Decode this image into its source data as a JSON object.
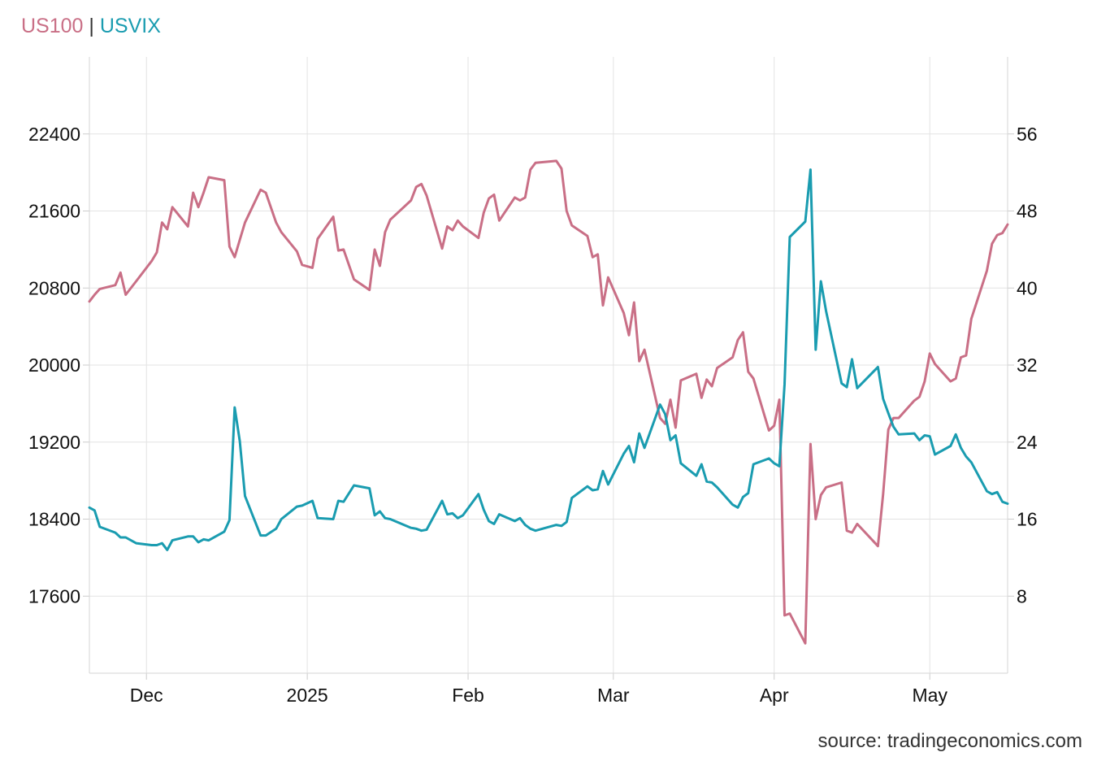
{
  "chart_data": {
    "type": "line",
    "title_parts": [
      "US100",
      "|",
      "USVIX"
    ],
    "source": "source: tradingeconomics.com",
    "colors": {
      "US100": "#c96f86",
      "USVIX": "#1a9cb0"
    },
    "x_range": [
      "2024-11-20",
      "2025-05-16"
    ],
    "x_ticks": [
      {
        "label": "Dec",
        "date": "2024-12-01"
      },
      {
        "label": "2025",
        "date": "2025-01-01"
      },
      {
        "label": "Feb",
        "date": "2025-02-01"
      },
      {
        "label": "Mar",
        "date": "2025-03-01"
      },
      {
        "label": "Apr",
        "date": "2025-04-01"
      },
      {
        "label": "May",
        "date": "2025-05-01"
      }
    ],
    "y_left": {
      "range": [
        16800,
        23200
      ],
      "ticks": [
        "17600",
        "18400",
        "19200",
        "20000",
        "20800",
        "21600",
        "22400"
      ]
    },
    "y_right": {
      "range": [
        0,
        64
      ],
      "ticks": [
        "8",
        "16",
        "24",
        "32",
        "40",
        "48",
        "56"
      ]
    },
    "grid": true,
    "series": [
      {
        "name": "US100",
        "axis": "left",
        "x": [
          "2024-11-20",
          "2024-11-21",
          "2024-11-22",
          "2024-11-25",
          "2024-11-26",
          "2024-11-27",
          "2024-11-29",
          "2024-12-02",
          "2024-12-03",
          "2024-12-04",
          "2024-12-05",
          "2024-12-06",
          "2024-12-09",
          "2024-12-10",
          "2024-12-11",
          "2024-12-12",
          "2024-12-13",
          "2024-12-16",
          "2024-12-17",
          "2024-12-18",
          "2024-12-19",
          "2024-12-20",
          "2024-12-23",
          "2024-12-24",
          "2024-12-26",
          "2024-12-27",
          "2024-12-30",
          "2024-12-31",
          "2025-01-02",
          "2025-01-03",
          "2025-01-06",
          "2025-01-07",
          "2025-01-08",
          "2025-01-10",
          "2025-01-13",
          "2025-01-14",
          "2025-01-15",
          "2025-01-16",
          "2025-01-17",
          "2025-01-21",
          "2025-01-22",
          "2025-01-23",
          "2025-01-24",
          "2025-01-27",
          "2025-01-28",
          "2025-01-29",
          "2025-01-30",
          "2025-01-31",
          "2025-02-03",
          "2025-02-04",
          "2025-02-05",
          "2025-02-06",
          "2025-02-07",
          "2025-02-10",
          "2025-02-11",
          "2025-02-12",
          "2025-02-13",
          "2025-02-14",
          "2025-02-18",
          "2025-02-19",
          "2025-02-20",
          "2025-02-21",
          "2025-02-24",
          "2025-02-25",
          "2025-02-26",
          "2025-02-27",
          "2025-02-28",
          "2025-03-03",
          "2025-03-04",
          "2025-03-05",
          "2025-03-06",
          "2025-03-07",
          "2025-03-10",
          "2025-03-11",
          "2025-03-12",
          "2025-03-13",
          "2025-03-14",
          "2025-03-17",
          "2025-03-18",
          "2025-03-19",
          "2025-03-20",
          "2025-03-21",
          "2025-03-24",
          "2025-03-25",
          "2025-03-26",
          "2025-03-27",
          "2025-03-28",
          "2025-03-31",
          "2025-04-01",
          "2025-04-02",
          "2025-04-03",
          "2025-04-04",
          "2025-04-07",
          "2025-04-08",
          "2025-04-09",
          "2025-04-10",
          "2025-04-11",
          "2025-04-14",
          "2025-04-15",
          "2025-04-16",
          "2025-04-17",
          "2025-04-21",
          "2025-04-22",
          "2025-04-23",
          "2025-04-24",
          "2025-04-25",
          "2025-04-28",
          "2025-04-29",
          "2025-04-30",
          "2025-05-01",
          "2025-05-02",
          "2025-05-05",
          "2025-05-06",
          "2025-05-07",
          "2025-05-08",
          "2025-05-09",
          "2025-05-12",
          "2025-05-13",
          "2025-05-14",
          "2025-05-15",
          "2025-05-16"
        ],
        "y": [
          20660,
          20730,
          20790,
          20830,
          20960,
          20730,
          20870,
          21080,
          21170,
          21480,
          21410,
          21640,
          21440,
          21790,
          21640,
          21790,
          21950,
          21920,
          21230,
          21120,
          21300,
          21480,
          21820,
          21790,
          21480,
          21380,
          21180,
          21040,
          21010,
          21310,
          21540,
          21190,
          21200,
          20890,
          20780,
          21200,
          21030,
          21380,
          21510,
          21710,
          21850,
          21880,
          21760,
          21210,
          21440,
          21400,
          21500,
          21440,
          21320,
          21580,
          21730,
          21770,
          21500,
          21740,
          21710,
          21740,
          22030,
          22100,
          22120,
          22040,
          21600,
          21450,
          21340,
          21120,
          21150,
          20620,
          20910,
          20540,
          20310,
          20650,
          20040,
          20160,
          19450,
          19390,
          19640,
          19350,
          19840,
          19910,
          19660,
          19850,
          19780,
          19970,
          20080,
          20260,
          20340,
          19930,
          19860,
          19320,
          19370,
          19640,
          17400,
          17420,
          17110,
          19180,
          18400,
          18650,
          18730,
          18780,
          18280,
          18260,
          18350,
          18120,
          18660,
          19330,
          19450,
          19450,
          19630,
          19670,
          19830,
          20120,
          20010,
          19830,
          19860,
          20080,
          20100,
          20480,
          20980,
          21260,
          21350,
          21370,
          21460
        ]
      },
      {
        "name": "USVIX",
        "axis": "right",
        "x": [
          "2024-11-20",
          "2024-11-21",
          "2024-11-22",
          "2024-11-25",
          "2024-11-26",
          "2024-11-27",
          "2024-11-29",
          "2024-12-02",
          "2024-12-03",
          "2024-12-04",
          "2024-12-05",
          "2024-12-06",
          "2024-12-09",
          "2024-12-10",
          "2024-12-11",
          "2024-12-12",
          "2024-12-13",
          "2024-12-16",
          "2024-12-17",
          "2024-12-18",
          "2024-12-19",
          "2024-12-20",
          "2024-12-23",
          "2024-12-24",
          "2024-12-26",
          "2024-12-27",
          "2024-12-30",
          "2024-12-31",
          "2025-01-02",
          "2025-01-03",
          "2025-01-06",
          "2025-01-07",
          "2025-01-08",
          "2025-01-10",
          "2025-01-13",
          "2025-01-14",
          "2025-01-15",
          "2025-01-16",
          "2025-01-17",
          "2025-01-21",
          "2025-01-22",
          "2025-01-23",
          "2025-01-24",
          "2025-01-27",
          "2025-01-28",
          "2025-01-29",
          "2025-01-30",
          "2025-01-31",
          "2025-02-03",
          "2025-02-04",
          "2025-02-05",
          "2025-02-06",
          "2025-02-07",
          "2025-02-10",
          "2025-02-11",
          "2025-02-12",
          "2025-02-13",
          "2025-02-14",
          "2025-02-18",
          "2025-02-19",
          "2025-02-20",
          "2025-02-21",
          "2025-02-24",
          "2025-02-25",
          "2025-02-26",
          "2025-02-27",
          "2025-02-28",
          "2025-03-03",
          "2025-03-04",
          "2025-03-05",
          "2025-03-06",
          "2025-03-07",
          "2025-03-10",
          "2025-03-11",
          "2025-03-12",
          "2025-03-13",
          "2025-03-14",
          "2025-03-17",
          "2025-03-18",
          "2025-03-19",
          "2025-03-20",
          "2025-03-21",
          "2025-03-24",
          "2025-03-25",
          "2025-03-26",
          "2025-03-27",
          "2025-03-28",
          "2025-03-31",
          "2025-04-01",
          "2025-04-02",
          "2025-04-03",
          "2025-04-04",
          "2025-04-07",
          "2025-04-08",
          "2025-04-09",
          "2025-04-10",
          "2025-04-11",
          "2025-04-14",
          "2025-04-15",
          "2025-04-16",
          "2025-04-17",
          "2025-04-21",
          "2025-04-22",
          "2025-04-23",
          "2025-04-24",
          "2025-04-25",
          "2025-04-28",
          "2025-04-29",
          "2025-04-30",
          "2025-05-01",
          "2025-05-02",
          "2025-05-05",
          "2025-05-06",
          "2025-05-07",
          "2025-05-08",
          "2025-05-09",
          "2025-05-12",
          "2025-05-13",
          "2025-05-14",
          "2025-05-15",
          "2025-05-16"
        ],
        "y": [
          17.2,
          16.9,
          15.2,
          14.6,
          14.1,
          14.1,
          13.5,
          13.3,
          13.3,
          13.5,
          12.8,
          13.8,
          14.2,
          14.2,
          13.6,
          13.9,
          13.8,
          14.7,
          15.9,
          27.6,
          24.1,
          18.4,
          14.3,
          14.3,
          15.0,
          16.0,
          17.3,
          17.4,
          17.9,
          16.1,
          16.0,
          17.9,
          17.8,
          19.5,
          19.2,
          16.4,
          16.8,
          16.1,
          16.0,
          15.1,
          15.0,
          14.8,
          14.9,
          17.9,
          16.5,
          16.6,
          16.1,
          16.4,
          18.6,
          17.0,
          15.8,
          15.5,
          16.5,
          15.8,
          16.1,
          15.4,
          15.0,
          14.8,
          15.4,
          15.3,
          15.7,
          18.2,
          19.4,
          19.0,
          19.1,
          21.0,
          19.6,
          22.8,
          23.6,
          21.9,
          24.9,
          23.4,
          27.9,
          26.9,
          24.2,
          24.7,
          21.8,
          20.5,
          21.7,
          19.9,
          19.8,
          19.3,
          17.5,
          17.2,
          18.3,
          18.7,
          21.7,
          22.3,
          21.8,
          21.5,
          30.0,
          45.3,
          46.9,
          52.3,
          33.6,
          40.7,
          37.6,
          30.1,
          29.7,
          32.6,
          29.6,
          31.8,
          28.5,
          27.0,
          25.6,
          24.8,
          24.9,
          24.2,
          24.7,
          24.6,
          22.7,
          23.6,
          24.8,
          23.4,
          22.5,
          21.9,
          18.9,
          18.6,
          18.8,
          17.8,
          17.6
        ]
      }
    ]
  }
}
